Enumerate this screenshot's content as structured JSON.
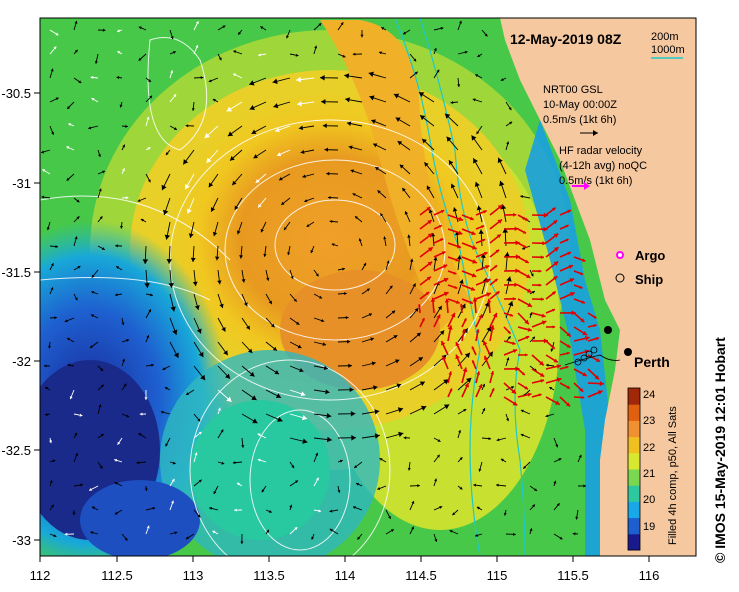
{
  "title": "12-May-2019 08Z",
  "scale_bar": {
    "label_200": "200m",
    "label_1000": "1000m"
  },
  "model_legend": {
    "name": "NRT00 GSL",
    "date": "10-May 00:00Z",
    "speed": "0.5m/s (1kt 6h)"
  },
  "radar_legend": {
    "line1": "HF radar velocity",
    "line2": "(4-12h avg) noQC",
    "speed": "0.5m/s (1kt 6h)"
  },
  "markers": {
    "argo": "Argo",
    "ship": "Ship",
    "city": "Perth"
  },
  "colorbar": {
    "ticks": [
      "24",
      "23",
      "22",
      "21",
      "20",
      "19"
    ],
    "caption": "Filled 4h comp, p50, All Sats",
    "colors": [
      "#1a1a8c",
      "#1e5fd0",
      "#18a8e8",
      "#2ec8a0",
      "#7ad850",
      "#d8e830",
      "#f0c020",
      "#f09030",
      "#e06010",
      "#a02808"
    ]
  },
  "axes": {
    "x_ticks": [
      "112",
      "112.5",
      "113",
      "113.5",
      "114",
      "114.5",
      "115",
      "115.5",
      "116"
    ],
    "y_ticks": [
      "-30.5",
      "-31",
      "-31.5",
      "-32",
      "-32.5",
      "-33"
    ]
  },
  "colors": {
    "land": "#f5c8a0",
    "model_arrow": "#000000",
    "radar_arrow": "#e00000",
    "argo": "#ff00ff",
    "isobath": "#20c8c8"
  },
  "credit": "© IMOS 15-May-2019 12:01 Hobart"
}
